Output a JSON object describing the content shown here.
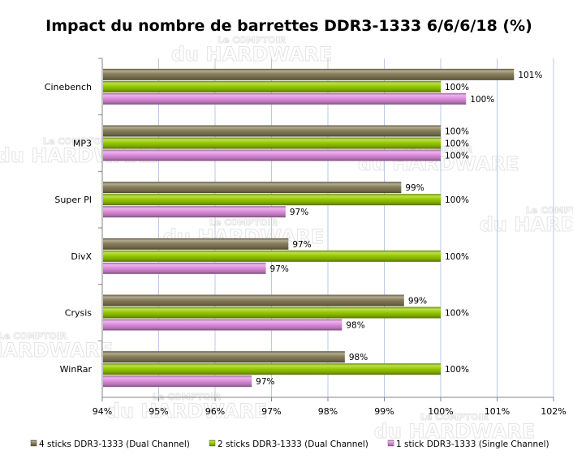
{
  "chart_data": {
    "type": "bar",
    "orientation": "horizontal",
    "title": "Impact du nombre de barrettes DDR3-1333 6/6/6/18 (%)",
    "xlabel": "",
    "ylabel": "",
    "xlim": [
      94,
      102
    ],
    "x_ticks": [
      "94%",
      "95%",
      "96%",
      "97%",
      "98%",
      "99%",
      "100%",
      "101%",
      "102%"
    ],
    "grid": "vertical",
    "legend_position": "bottom",
    "categories": [
      "Cinebench",
      "MP3",
      "Super PI",
      "DivX",
      "Crysis",
      "WinRar"
    ],
    "series": [
      {
        "name": "4 sticks DDR3-1333 (Dual Channel)",
        "color": "#8a7f5a",
        "values": [
          101.3,
          100.0,
          99.3,
          97.3,
          99.35,
          98.3
        ],
        "labels": [
          "101%",
          "100%",
          "99%",
          "97%",
          "99%",
          "98%"
        ]
      },
      {
        "name": "2 sticks DDR3-1333 (Dual Channel)",
        "color": "#99cc00",
        "values": [
          100.0,
          100.0,
          100.0,
          100.0,
          100.0,
          100.0
        ],
        "labels": [
          "100%",
          "100%",
          "100%",
          "100%",
          "100%",
          "100%"
        ]
      },
      {
        "name": "1 stick DDR3-1333 (Single Channel)",
        "color": "#e08fe0",
        "values": [
          100.45,
          100.0,
          97.25,
          96.9,
          98.25,
          96.65
        ],
        "labels": [
          "100%",
          "100%",
          "97%",
          "97%",
          "98%",
          "97%"
        ]
      }
    ]
  },
  "watermark": {
    "top": "Le COMPTOIR",
    "bottom": "du HARDWARE"
  }
}
